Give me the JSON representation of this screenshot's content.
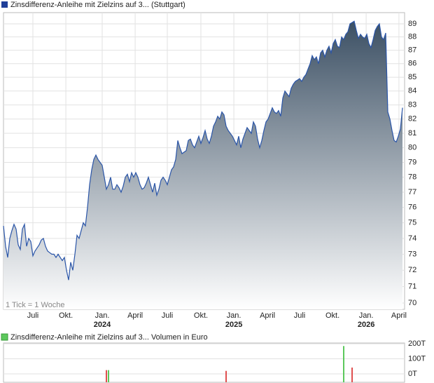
{
  "chart_data": [
    {
      "type": "area",
      "title": "Zinsdifferenz-Anleihe mit Zielzins auf 3... (Stuttgart)",
      "note": "1 Tick = 1 Woche",
      "color": "#2a55a8",
      "log": true,
      "grid": true,
      "ylim": [
        69.62,
        89.86
      ],
      "yticks": [
        70,
        71,
        72,
        73,
        74,
        75,
        76,
        77,
        78,
        79,
        80,
        81,
        82,
        83,
        84,
        85,
        86,
        87,
        88,
        89
      ],
      "xlim": [
        0,
        191
      ],
      "xticks": [
        {
          "value": 14,
          "label": "Juli"
        },
        {
          "value": 29.7,
          "label": "Okt."
        },
        {
          "value": 47,
          "label": "Jan."
        },
        {
          "value": 62.7,
          "label": "April"
        },
        {
          "value": 78,
          "label": "Juli"
        },
        {
          "value": 94,
          "label": "Okt."
        },
        {
          "value": 109.7,
          "label": "Jan."
        },
        {
          "value": 125.7,
          "label": "April"
        },
        {
          "value": 141,
          "label": "Juli"
        },
        {
          "value": 156.7,
          "label": "Okt."
        },
        {
          "value": 172.7,
          "label": "Jan."
        },
        {
          "value": 188.3,
          "label": "April"
        }
      ],
      "xticks_sub": [
        {
          "value": 47,
          "label": "2024"
        },
        {
          "value": 109.7,
          "label": "2025"
        },
        {
          "value": 172.7,
          "label": "2026"
        }
      ],
      "values": [
        74.8,
        73.5,
        72.8,
        74.0,
        74.5,
        74.9,
        74.6,
        73.6,
        73.3,
        74.6,
        74.9,
        73.5,
        74.0,
        73.8,
        72.9,
        73.2,
        73.4,
        73.6,
        73.9,
        74.0,
        73.5,
        73.2,
        73.1,
        73.0,
        73.0,
        72.8,
        73.0,
        72.8,
        72.6,
        72.8,
        72.0,
        71.4,
        72.5,
        72.0,
        73.0,
        74.2,
        74.0,
        74.5,
        75.0,
        74.8,
        76.0,
        77.5,
        78.5,
        79.2,
        79.5,
        79.2,
        79.0,
        78.8,
        78.0,
        77.2,
        77.5,
        78.0,
        77.2,
        77.2,
        77.5,
        77.3,
        77.0,
        77.4,
        78.0,
        78.2,
        77.7,
        78.3,
        78.0,
        78.3,
        78.0,
        77.5,
        77.2,
        77.3,
        77.6,
        78.0,
        77.5,
        77.0,
        77.6,
        76.8,
        77.2,
        77.8,
        78.0,
        77.8,
        77.5,
        78.0,
        78.5,
        78.7,
        79.2,
        80.5,
        80.0,
        79.6,
        79.7,
        79.8,
        80.5,
        80.6,
        80.2,
        80.0,
        80.4,
        80.8,
        80.3,
        80.7,
        81.2,
        80.6,
        80.3,
        80.8,
        81.5,
        81.8,
        82.2,
        82.0,
        82.5,
        82.3,
        81.5,
        81.2,
        81.0,
        80.8,
        80.5,
        80.2,
        80.8,
        80.0,
        80.6,
        81.0,
        81.4,
        81.2,
        81.0,
        81.8,
        81.5,
        80.6,
        80.0,
        80.5,
        81.2,
        81.8,
        82.0,
        82.4,
        82.8,
        82.5,
        82.4,
        82.6,
        82.2,
        83.5,
        84.0,
        83.8,
        83.6,
        84.2,
        84.5,
        84.7,
        84.8,
        84.9,
        84.7,
        85.0,
        85.2,
        85.6,
        86.0,
        86.6,
        86.3,
        86.5,
        86.0,
        86.8,
        87.0,
        86.5,
        87.0,
        87.3,
        86.8,
        87.5,
        87.8,
        87.3,
        87.2,
        88.0,
        87.8,
        88.2,
        88.4,
        89.0,
        89.1,
        89.2,
        88.5,
        87.9,
        88.2,
        88.0,
        87.9,
        88.2,
        87.5,
        87.2,
        87.8,
        88.5,
        88.8,
        89.0,
        88.0,
        87.8,
        88.3,
        82.5,
        82.0,
        81.2,
        80.5,
        80.4,
        80.8,
        81.3,
        82.8
      ]
    },
    {
      "type": "bar",
      "title": "Zinsdifferenz-Anleihe mit Zielzins auf 3... Volumen in Euro",
      "legend_color": "#5cc85c",
      "grid": true,
      "xlim": [
        0,
        191
      ],
      "ylim": [
        0,
        205000
      ],
      "yticks": [
        {
          "value": 0,
          "label": "0T"
        },
        {
          "value": 100000,
          "label": "100T"
        },
        {
          "value": 200000,
          "label": "200T"
        }
      ],
      "x": [
        49,
        50,
        106,
        162,
        166
      ],
      "values": [
        25000,
        25000,
        20000,
        185000,
        42000
      ],
      "colors": [
        "#e05050",
        "#5cc85c",
        "#e05050",
        "#5cc85c",
        "#e05050"
      ]
    }
  ]
}
